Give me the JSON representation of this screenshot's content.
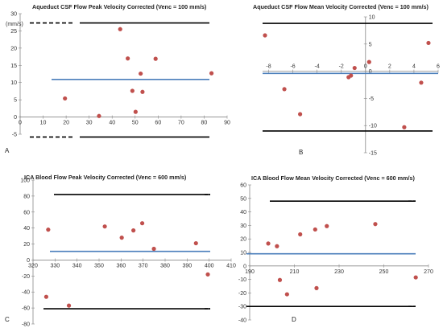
{
  "colors": {
    "mean_line": "#4a7ebb",
    "limit_line": "#000000",
    "point": "#c0504d",
    "axis": "#888888"
  },
  "chart_data": [
    {
      "type": "scatter",
      "panel_label": "A",
      "title": "Aqueduct CSF Flow Peak Velocity Corrected  (Venc = 100 mm/s)",
      "ylabel": "(mm/s)",
      "xlim": [
        0,
        90
      ],
      "ylim": [
        -5,
        30
      ],
      "x_ticks": [
        0,
        10,
        20,
        30,
        40,
        50,
        60,
        70,
        80,
        90
      ],
      "y_ticks": [
        -5,
        0,
        5,
        10,
        15,
        20,
        25,
        30
      ],
      "axes_cross": {
        "x": 0,
        "y": 0
      },
      "mean": 10.9,
      "upper_limit": 27.3,
      "lower_limit": -5.8,
      "points": [
        [
          19.5,
          5.4
        ],
        [
          34.3,
          0.3
        ],
        [
          43.5,
          25.5
        ],
        [
          46.8,
          17.0
        ],
        [
          48.8,
          7.6
        ],
        [
          50.2,
          1.5
        ],
        [
          52.4,
          12.6
        ],
        [
          53.2,
          7.3
        ],
        [
          58.9,
          16.9
        ],
        [
          83.2,
          12.7
        ]
      ]
    },
    {
      "type": "scatter",
      "panel_label": "B",
      "title": "Aqueduct CSF Flow Mean Velocity Corrected (Venc = 100 mm/s)",
      "xlim": [
        -8.5,
        6
      ],
      "ylim": [
        -15,
        10
      ],
      "x_ticks": [
        -8,
        -6,
        -4,
        -2,
        0,
        2,
        4,
        6
      ],
      "y_ticks": [
        -15,
        -10,
        -5,
        0,
        5,
        10
      ],
      "axes_cross": {
        "x": 0,
        "y": 0
      },
      "mean": -0.4,
      "upper_limit": 8.8,
      "lower_limit": -11.0,
      "points": [
        [
          -8.3,
          6.6
        ],
        [
          -6.7,
          -3.3
        ],
        [
          -5.4,
          -7.9
        ],
        [
          -1.4,
          -1.1
        ],
        [
          -1.2,
          -0.8
        ],
        [
          -0.9,
          0.6
        ],
        [
          0.3,
          1.7
        ],
        [
          3.2,
          -10.3
        ],
        [
          4.6,
          -2.1
        ],
        [
          5.2,
          5.2
        ]
      ]
    },
    {
      "type": "scatter",
      "panel_label": "C",
      "title": "ICA Blood Flow Peak Velocity Corrected  (Venc = 600 mm/s)",
      "xlim": [
        320,
        410
      ],
      "ylim": [
        -80,
        100
      ],
      "x_ticks": [
        320,
        330,
        340,
        350,
        360,
        370,
        380,
        390,
        400,
        410
      ],
      "y_ticks": [
        -80,
        -60,
        -40,
        -20,
        0,
        20,
        40,
        60,
        80,
        100
      ],
      "axes_cross": {
        "x": 320,
        "y": 0
      },
      "mean": 10.8,
      "upper_limit": 82.0,
      "lower_limit": -61.0,
      "points": [
        [
          326.9,
          38.0
        ],
        [
          326.0,
          -46.0
        ],
        [
          336.3,
          -57.0
        ],
        [
          352.6,
          42.0
        ],
        [
          360.3,
          28.0
        ],
        [
          365.6,
          37.0
        ],
        [
          369.6,
          46.0
        ],
        [
          374.9,
          14.0
        ],
        [
          394.0,
          21.0
        ],
        [
          399.4,
          -18.0
        ]
      ]
    },
    {
      "type": "scatter",
      "panel_label": "D",
      "title": "ICA Blood Flow Mean  Velocity Corrected (Venc = 600 mm/s)",
      "xlim": [
        190,
        270
      ],
      "ylim": [
        -40,
        60
      ],
      "x_ticks": [
        190,
        210,
        230,
        250,
        270
      ],
      "y_ticks": [
        -40,
        -30,
        -20,
        -10,
        0,
        10,
        20,
        30,
        40,
        50,
        60
      ],
      "axes_cross": {
        "x": 190,
        "y": 0
      },
      "mean": 9.0,
      "upper_limit": 48.0,
      "lower_limit": -30.0,
      "points": [
        [
          198.3,
          16.6
        ],
        [
          202.2,
          14.6
        ],
        [
          203.5,
          -10.4
        ],
        [
          206.7,
          -21.0
        ],
        [
          212.6,
          23.4
        ],
        [
          219.3,
          27.0
        ],
        [
          219.9,
          -16.4
        ],
        [
          224.5,
          29.5
        ],
        [
          246.2,
          31.0
        ],
        [
          264.3,
          -8.5
        ]
      ]
    }
  ]
}
